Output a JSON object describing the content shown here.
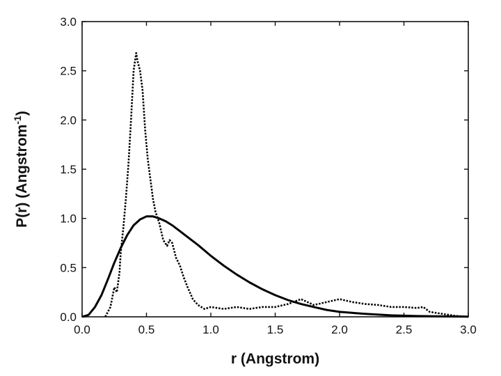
{
  "chart_data": {
    "type": "line",
    "title": "",
    "xlabel": "r  (Angstrom)",
    "ylabel_main": "P(r)  (Angstrom",
    "ylabel_sup": "-1",
    "ylabel_close": ")",
    "xlim": [
      0,
      3.0
    ],
    "ylim": [
      0,
      3.0
    ],
    "xticks": [
      "0.0",
      "0.5",
      "1.0",
      "1.5",
      "2.0",
      "2.5",
      "3.0"
    ],
    "xtick_values": [
      0,
      0.5,
      1.0,
      1.5,
      2.0,
      2.5,
      3.0
    ],
    "yticks": [
      "0.0",
      "0.5",
      "1.0",
      "1.5",
      "2.0",
      "2.5",
      "3.0"
    ],
    "ytick_values": [
      0,
      0.5,
      1.0,
      1.5,
      2.0,
      2.5,
      3.0
    ],
    "grid": false,
    "legend": "none",
    "series": [
      {
        "style": "solid",
        "color": "#000000",
        "x": [
          0.0,
          0.05,
          0.1,
          0.15,
          0.2,
          0.25,
          0.3,
          0.35,
          0.4,
          0.45,
          0.5,
          0.55,
          0.6,
          0.65,
          0.7,
          0.75,
          0.8,
          0.9,
          1.0,
          1.1,
          1.2,
          1.3,
          1.4,
          1.5,
          1.6,
          1.7,
          1.8,
          1.9,
          2.0,
          2.2,
          2.4,
          2.6,
          2.8,
          3.0
        ],
        "y": [
          0.0,
          0.02,
          0.1,
          0.22,
          0.38,
          0.55,
          0.7,
          0.83,
          0.93,
          0.99,
          1.02,
          1.02,
          1.0,
          0.97,
          0.93,
          0.88,
          0.83,
          0.73,
          0.62,
          0.52,
          0.43,
          0.35,
          0.28,
          0.22,
          0.17,
          0.13,
          0.1,
          0.07,
          0.05,
          0.03,
          0.015,
          0.008,
          0.004,
          0.002
        ]
      },
      {
        "style": "dotted",
        "color": "#000000",
        "x": [
          0.18,
          0.22,
          0.25,
          0.27,
          0.29,
          0.3,
          0.32,
          0.34,
          0.36,
          0.38,
          0.4,
          0.42,
          0.43,
          0.45,
          0.47,
          0.49,
          0.51,
          0.53,
          0.55,
          0.57,
          0.6,
          0.63,
          0.66,
          0.68,
          0.7,
          0.73,
          0.76,
          0.79,
          0.82,
          0.86,
          0.9,
          0.95,
          1.0,
          1.1,
          1.2,
          1.3,
          1.4,
          1.5,
          1.6,
          1.7,
          1.75,
          1.8,
          1.9,
          2.0,
          2.1,
          2.2,
          2.3,
          2.4,
          2.5,
          2.6,
          2.65,
          2.7,
          2.8,
          2.9,
          3.0
        ],
        "y": [
          0.0,
          0.1,
          0.3,
          0.25,
          0.45,
          0.65,
          0.9,
          1.2,
          1.55,
          2.0,
          2.5,
          2.68,
          2.6,
          2.5,
          2.3,
          1.9,
          1.6,
          1.4,
          1.2,
          1.07,
          0.95,
          0.78,
          0.72,
          0.78,
          0.75,
          0.6,
          0.52,
          0.4,
          0.3,
          0.18,
          0.12,
          0.08,
          0.1,
          0.08,
          0.1,
          0.08,
          0.1,
          0.1,
          0.13,
          0.18,
          0.15,
          0.12,
          0.15,
          0.18,
          0.15,
          0.13,
          0.12,
          0.1,
          0.1,
          0.09,
          0.1,
          0.05,
          0.03,
          0.01,
          0.0
        ]
      }
    ]
  }
}
